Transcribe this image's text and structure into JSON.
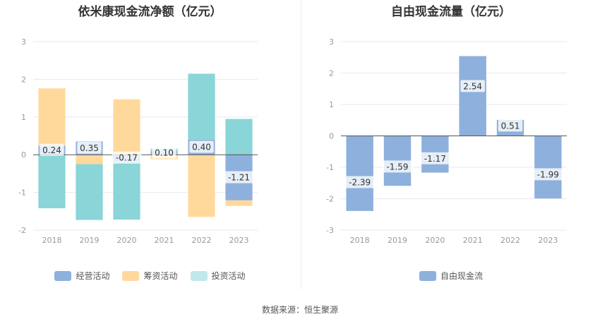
{
  "source_text": "数据来源：恒生聚源",
  "colors": {
    "operating": "#8eb0dc",
    "financing": "#ffd99c",
    "investing": "#89d5d8",
    "free_cash_flow": "#8eb0dc",
    "grid": "#e6e8f0",
    "axis": "#555555"
  },
  "chart_data": [
    {
      "type": "bar",
      "stacked": true,
      "title": "依米康现金流净额（亿元）",
      "categories": [
        "2018",
        "2019",
        "2020",
        "2021",
        "2022",
        "2023"
      ],
      "ylim": [
        -2,
        3
      ],
      "yticks": [
        -2,
        -1,
        0,
        1,
        2,
        3
      ],
      "grid": true,
      "legend_position": "bottom",
      "series": [
        {
          "name": "经营活动",
          "key": "operating",
          "values": [
            0.24,
            0.35,
            -0.17,
            0.1,
            0.4,
            -1.21
          ]
        },
        {
          "name": "筹资活动",
          "key": "financing",
          "values": [
            1.52,
            -0.25,
            1.47,
            -0.12,
            -1.65,
            -0.15
          ]
        },
        {
          "name": "投资活动",
          "key": "investing",
          "values": [
            -1.42,
            -1.48,
            -1.55,
            0.06,
            1.75,
            0.95
          ]
        }
      ],
      "data_labels": [
        {
          "series": "operating",
          "values": [
            "0.24",
            "0.35",
            "-0.17",
            "0.10",
            "0.40",
            "-1.21"
          ]
        }
      ]
    },
    {
      "type": "bar",
      "stacked": false,
      "title": "自由现金流量（亿元）",
      "categories": [
        "2018",
        "2019",
        "2020",
        "2021",
        "2022",
        "2023"
      ],
      "ylim": [
        -3,
        3
      ],
      "yticks": [
        -3,
        -2,
        -1,
        0,
        1,
        2,
        3
      ],
      "grid": true,
      "legend_position": "bottom",
      "series": [
        {
          "name": "自由现金流",
          "key": "free_cash_flow",
          "values": [
            -2.39,
            -1.59,
            -1.17,
            2.54,
            0.51,
            -1.99
          ]
        }
      ],
      "data_labels": [
        {
          "series": "free_cash_flow",
          "values": [
            "-2.39",
            "-1.59",
            "-1.17",
            "2.54",
            "0.51",
            "-1.99"
          ]
        }
      ]
    }
  ]
}
